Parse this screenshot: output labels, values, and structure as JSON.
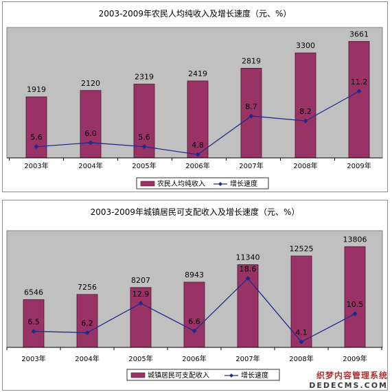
{
  "colors": {
    "bar": "#993366",
    "bar_edge": "#4a1530",
    "line": "#1f2a8c",
    "plot_bg": "#c0c0c0",
    "frame": "#8c8c8c"
  },
  "chart_data": [
    {
      "type": "bar",
      "title": "2003-2009年农民人均纯收入及增长速度（元、%）",
      "categories": [
        "2003年",
        "2004年",
        "2005年",
        "2006年",
        "2007年",
        "2008年",
        "2009年"
      ],
      "series": [
        {
          "name": "农民人均纯收入",
          "type": "bar",
          "values": [
            1919,
            2120,
            2319,
            2419,
            2819,
            3300,
            3661
          ]
        },
        {
          "name": "增长速度",
          "type": "line",
          "values": [
            5.6,
            6.0,
            5.6,
            4.8,
            8.7,
            8.2,
            11.2
          ]
        }
      ],
      "legend_position": "bottom",
      "grid": false
    },
    {
      "type": "bar",
      "title": "2003-2009年城镇居民可支配收入及增长速度（元、%）",
      "categories": [
        "2003年",
        "2004年",
        "2005年",
        "2006年",
        "2007年",
        "2008年",
        "2009年"
      ],
      "series": [
        {
          "name": "城镇居民可支配收入",
          "type": "bar",
          "values": [
            6546,
            7256,
            8207,
            8943,
            11340,
            12525,
            13806
          ]
        },
        {
          "name": "增长速度",
          "type": "line",
          "values": [
            6.5,
            6.2,
            12.9,
            6.6,
            18.6,
            4.1,
            10.5
          ]
        }
      ],
      "legend_position": "bottom",
      "grid": false
    }
  ],
  "watermark": {
    "line1": "织梦内容管理系统",
    "line2": "DEDECMS.COM"
  }
}
